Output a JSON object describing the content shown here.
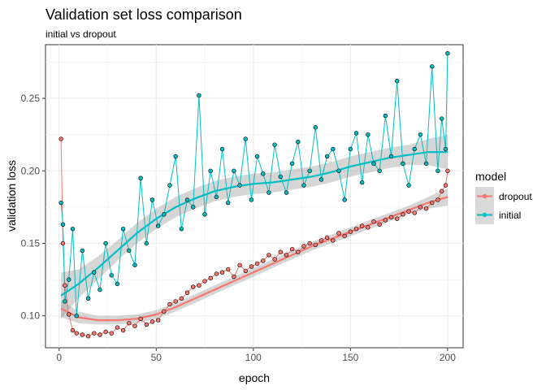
{
  "chart_data": {
    "type": "line",
    "title": "Validation set loss comparison",
    "subtitle": "initial vs dropout",
    "xlabel": "epoch",
    "ylabel": "validation loss",
    "xlim": [
      -7,
      208
    ],
    "ylim": [
      0.078,
      0.287
    ],
    "x_ticks": [
      0,
      50,
      100,
      150,
      200
    ],
    "y_ticks": [
      0.1,
      0.15,
      0.2,
      0.25
    ],
    "grid": true,
    "legend": {
      "title": "model",
      "position": "right",
      "entries": [
        "dropout",
        "initial"
      ]
    },
    "series": [
      {
        "name": "dropout",
        "color": "#F8766D",
        "x": [
          1,
          2,
          3,
          5,
          7,
          9,
          12,
          15,
          18,
          21,
          24,
          27,
          30,
          33,
          36,
          39,
          42,
          45,
          48,
          51,
          54,
          57,
          60,
          63,
          66,
          69,
          72,
          75,
          78,
          81,
          84,
          87,
          90,
          93,
          96,
          99,
          102,
          105,
          108,
          111,
          114,
          117,
          120,
          123,
          126,
          129,
          132,
          135,
          138,
          141,
          144,
          147,
          150,
          153,
          156,
          159,
          162,
          165,
          168,
          171,
          174,
          177,
          180,
          183,
          186,
          189,
          192,
          195,
          197,
          199,
          200
        ],
        "values": [
          0.222,
          0.15,
          0.121,
          0.101,
          0.09,
          0.088,
          0.087,
          0.086,
          0.088,
          0.087,
          0.089,
          0.088,
          0.092,
          0.09,
          0.095,
          0.093,
          0.098,
          0.094,
          0.096,
          0.097,
          0.103,
          0.108,
          0.11,
          0.112,
          0.116,
          0.12,
          0.121,
          0.124,
          0.126,
          0.129,
          0.13,
          0.132,
          0.127,
          0.135,
          0.131,
          0.134,
          0.136,
          0.138,
          0.142,
          0.139,
          0.144,
          0.142,
          0.146,
          0.144,
          0.148,
          0.15,
          0.149,
          0.152,
          0.154,
          0.152,
          0.157,
          0.155,
          0.158,
          0.16,
          0.162,
          0.161,
          0.165,
          0.163,
          0.166,
          0.168,
          0.167,
          0.17,
          0.172,
          0.171,
          0.175,
          0.174,
          0.178,
          0.18,
          0.186,
          0.19,
          0.2
        ],
        "smooth": {
          "x": [
            1,
            10,
            20,
            30,
            40,
            50,
            60,
            70,
            80,
            90,
            100,
            110,
            120,
            130,
            140,
            150,
            160,
            170,
            180,
            190,
            200
          ],
          "y": [
            0.105,
            0.099,
            0.097,
            0.097,
            0.098,
            0.101,
            0.106,
            0.112,
            0.118,
            0.124,
            0.13,
            0.136,
            0.142,
            0.148,
            0.153,
            0.158,
            0.163,
            0.168,
            0.173,
            0.178,
            0.182
          ],
          "ci": [
            0.006,
            0.004,
            0.003,
            0.003,
            0.003,
            0.003,
            0.003,
            0.003,
            0.003,
            0.003,
            0.003,
            0.003,
            0.003,
            0.003,
            0.003,
            0.003,
            0.003,
            0.003,
            0.003,
            0.004,
            0.006
          ]
        }
      },
      {
        "name": "initial",
        "color": "#00BFC4",
        "x": [
          1,
          2,
          3,
          5,
          7,
          9,
          12,
          15,
          18,
          21,
          24,
          27,
          30,
          33,
          36,
          39,
          42,
          45,
          48,
          51,
          54,
          57,
          60,
          63,
          66,
          69,
          72,
          75,
          78,
          81,
          84,
          87,
          90,
          93,
          96,
          99,
          102,
          105,
          108,
          111,
          114,
          117,
          120,
          123,
          126,
          129,
          132,
          135,
          138,
          141,
          144,
          147,
          150,
          153,
          156,
          159,
          162,
          165,
          168,
          171,
          174,
          177,
          180,
          183,
          186,
          189,
          192,
          195,
          197,
          199,
          200
        ],
        "values": [
          0.178,
          0.163,
          0.11,
          0.125,
          0.16,
          0.1,
          0.145,
          0.112,
          0.13,
          0.118,
          0.15,
          0.128,
          0.122,
          0.16,
          0.145,
          0.135,
          0.195,
          0.15,
          0.18,
          0.162,
          0.17,
          0.19,
          0.21,
          0.16,
          0.18,
          0.175,
          0.252,
          0.17,
          0.2,
          0.182,
          0.215,
          0.178,
          0.2,
          0.19,
          0.222,
          0.18,
          0.21,
          0.198,
          0.185,
          0.218,
          0.196,
          0.185,
          0.205,
          0.22,
          0.19,
          0.2,
          0.23,
          0.194,
          0.21,
          0.215,
          0.2,
          0.18,
          0.215,
          0.226,
          0.192,
          0.225,
          0.205,
          0.2,
          0.238,
          0.21,
          0.262,
          0.205,
          0.19,
          0.215,
          0.225,
          0.205,
          0.272,
          0.2,
          0.236,
          0.215,
          0.281
        ],
        "smooth": {
          "x": [
            1,
            10,
            20,
            30,
            40,
            50,
            60,
            70,
            80,
            90,
            100,
            110,
            120,
            130,
            140,
            150,
            160,
            170,
            180,
            190,
            200
          ],
          "y": [
            0.114,
            0.122,
            0.133,
            0.145,
            0.157,
            0.167,
            0.175,
            0.181,
            0.186,
            0.189,
            0.191,
            0.192,
            0.194,
            0.196,
            0.199,
            0.203,
            0.206,
            0.209,
            0.211,
            0.213,
            0.213
          ],
          "ci": [
            0.016,
            0.01,
            0.008,
            0.007,
            0.007,
            0.007,
            0.007,
            0.007,
            0.007,
            0.007,
            0.007,
            0.007,
            0.007,
            0.007,
            0.007,
            0.007,
            0.007,
            0.007,
            0.007,
            0.009,
            0.012
          ]
        }
      }
    ]
  }
}
